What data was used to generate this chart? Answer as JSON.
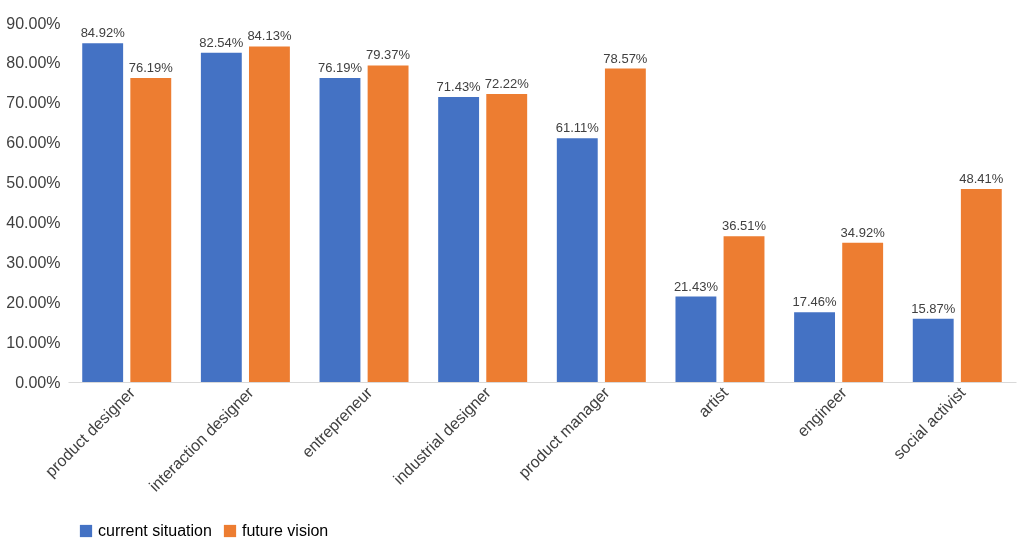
{
  "chart_data": {
    "type": "bar",
    "categories": [
      "product designer",
      "interaction designer",
      "entrepreneur",
      "industrial designer",
      "product manager",
      "artist",
      "engineer",
      "social activist"
    ],
    "series": [
      {
        "name": "current situation",
        "color": "#4472c4",
        "values": [
          84.92,
          82.54,
          76.19,
          71.43,
          61.11,
          21.43,
          17.46,
          15.87
        ],
        "value_labels": [
          "84.92%",
          "82.54%",
          "76.19%",
          "71.43%",
          "61.11%",
          "21.43%",
          "17.46%",
          "15.87%"
        ]
      },
      {
        "name": "future vision",
        "color": "#ed7d31",
        "values": [
          76.19,
          84.13,
          79.37,
          72.22,
          78.57,
          36.51,
          34.92,
          48.41
        ],
        "value_labels": [
          "76.19%",
          "84.13%",
          "79.37%",
          "72.22%",
          "78.57%",
          "36.51%",
          "34.92%",
          "48.41%"
        ]
      }
    ],
    "ylim": [
      0,
      90
    ],
    "yticks": [
      {
        "value": 0,
        "label": "0.00%"
      },
      {
        "value": 10,
        "label": "10.00%"
      },
      {
        "value": 20,
        "label": "20.00%"
      },
      {
        "value": 30,
        "label": "30.00%"
      },
      {
        "value": 40,
        "label": "40.00%"
      },
      {
        "value": 50,
        "label": "50.00%"
      },
      {
        "value": 60,
        "label": "60.00%"
      },
      {
        "value": 70,
        "label": "70.00%"
      },
      {
        "value": 80,
        "label": "80.00%"
      },
      {
        "value": 90,
        "label": "90.00%"
      }
    ],
    "grid": false,
    "legend": "bottom"
  }
}
